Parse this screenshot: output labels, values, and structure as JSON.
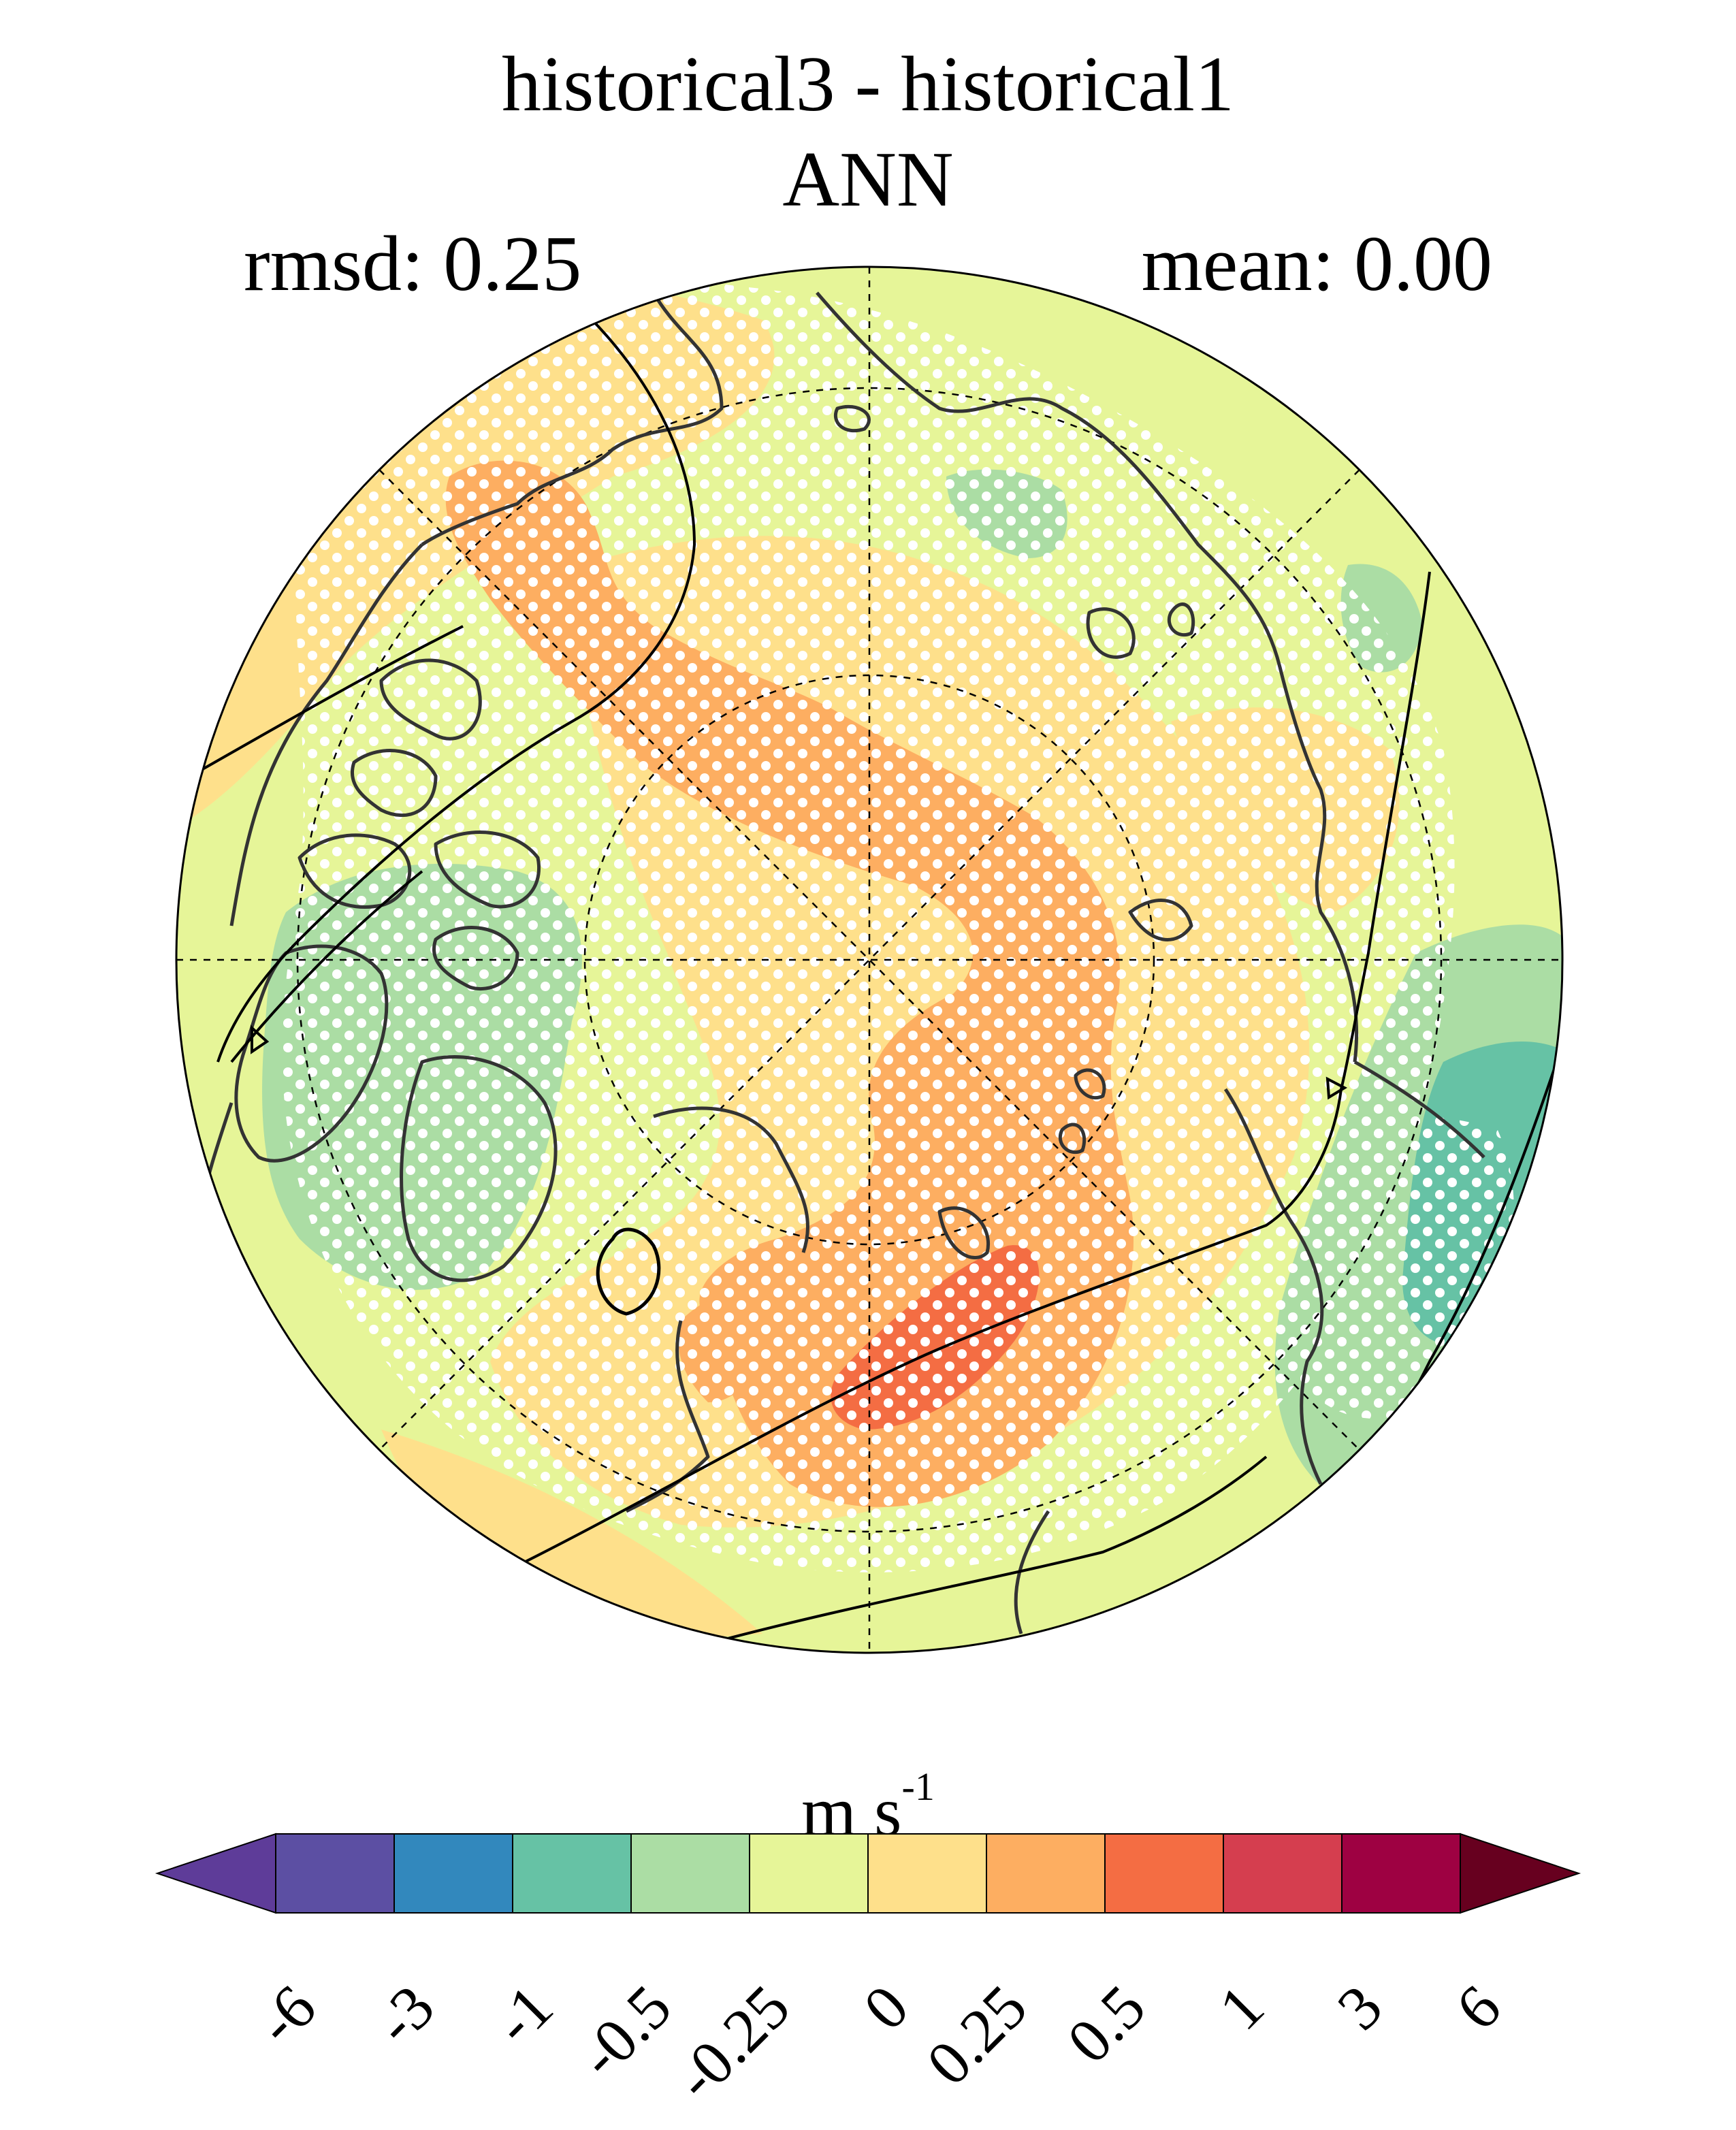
{
  "title": "historical3 - historical1",
  "subtitle": "ANN",
  "rmsd_label": "rmsd: 0.25",
  "mean_label": "mean: 0.00",
  "units": {
    "base": "m s",
    "exponent": "-1"
  },
  "colorbar": {
    "ticks": [
      "-6",
      "-3",
      "-1",
      "-0.5",
      "-0.25",
      "0",
      "0.25",
      "0.5",
      "1",
      "3",
      "6"
    ],
    "colors": [
      "#5e3c99",
      "#5c4fa3",
      "#3288bd",
      "#66c2a5",
      "#abdda4",
      "#e6f598",
      "#fee08b",
      "#fdae61",
      "#f46d43",
      "#d53e4f",
      "#9e0142",
      "#67001f"
    ]
  },
  "map": {
    "projection": "north-polar-stereographic",
    "background_color": "#e6f598",
    "stippling": "white dots",
    "field_colors": {
      "light_orange": "#fee08b",
      "orange": "#fdae61",
      "dark_orange": "#f46d43",
      "light_green": "#abdda4",
      "teal": "#66c2a5"
    }
  }
}
